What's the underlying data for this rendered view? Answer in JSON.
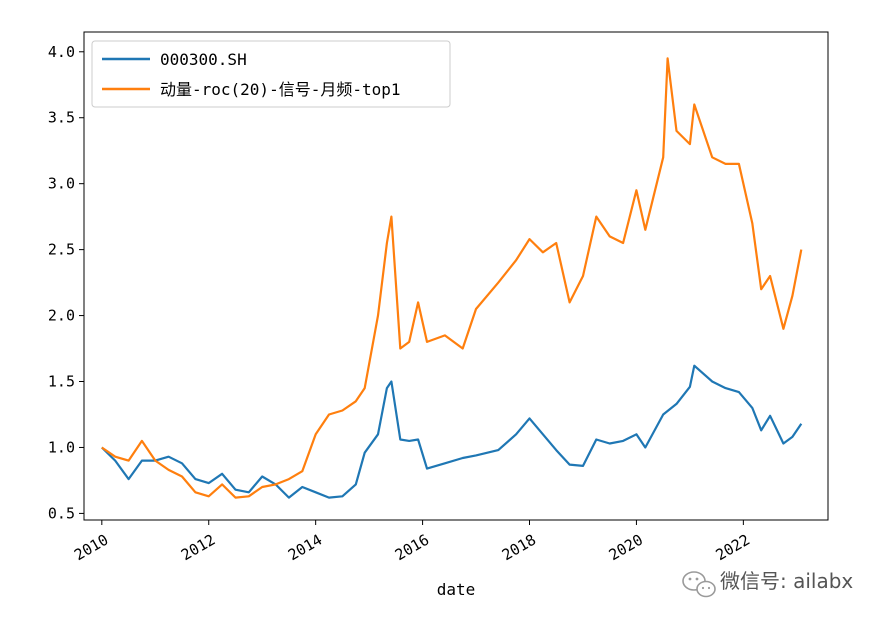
{
  "chart_data": {
    "type": "line",
    "xlabel": "date",
    "ylabel": "",
    "xlim": [
      "2009-09",
      "2023-08"
    ],
    "ylim": [
      0.45,
      4.15
    ],
    "x_ticks": [
      "2010",
      "2012",
      "2014",
      "2016",
      "2018",
      "2020",
      "2022"
    ],
    "y_ticks": [
      "0.5",
      "1.0",
      "1.5",
      "2.0",
      "2.5",
      "3.0",
      "3.5",
      "4.0"
    ],
    "grid": false,
    "legend_position": "top-left",
    "series": [
      {
        "name": "000300.SH",
        "color": "#1f77b4",
        "x": [
          "2010-01",
          "2010-04",
          "2010-07",
          "2010-10",
          "2011-01",
          "2011-04",
          "2011-07",
          "2011-10",
          "2012-01",
          "2012-04",
          "2012-07",
          "2012-10",
          "2013-01",
          "2013-04",
          "2013-07",
          "2013-10",
          "2014-01",
          "2014-04",
          "2014-07",
          "2014-10",
          "2014-12",
          "2015-03",
          "2015-05",
          "2015-06",
          "2015-08",
          "2015-10",
          "2015-12",
          "2016-02",
          "2016-06",
          "2016-10",
          "2017-01",
          "2017-06",
          "2017-10",
          "2018-01",
          "2018-04",
          "2018-07",
          "2018-10",
          "2019-01",
          "2019-04",
          "2019-07",
          "2019-10",
          "2020-01",
          "2020-03",
          "2020-07",
          "2020-10",
          "2021-01",
          "2021-02",
          "2021-06",
          "2021-09",
          "2021-12",
          "2022-03",
          "2022-05",
          "2022-07",
          "2022-10",
          "2022-12",
          "2023-02"
        ],
        "values": [
          1.0,
          0.9,
          0.76,
          0.9,
          0.9,
          0.93,
          0.88,
          0.76,
          0.73,
          0.8,
          0.68,
          0.66,
          0.78,
          0.72,
          0.62,
          0.7,
          0.66,
          0.62,
          0.63,
          0.72,
          0.96,
          1.1,
          1.45,
          1.5,
          1.06,
          1.05,
          1.06,
          0.84,
          0.88,
          0.92,
          0.94,
          0.98,
          1.1,
          1.22,
          1.1,
          0.98,
          0.87,
          0.86,
          1.06,
          1.03,
          1.05,
          1.1,
          1.0,
          1.25,
          1.33,
          1.46,
          1.62,
          1.5,
          1.45,
          1.42,
          1.3,
          1.13,
          1.24,
          1.03,
          1.08,
          1.18
        ]
      },
      {
        "name": "动量-roc(20)-信号-月频-top1",
        "color": "#ff7f0e",
        "x": [
          "2010-01",
          "2010-04",
          "2010-07",
          "2010-10",
          "2011-01",
          "2011-04",
          "2011-07",
          "2011-10",
          "2012-01",
          "2012-04",
          "2012-07",
          "2012-10",
          "2013-01",
          "2013-04",
          "2013-07",
          "2013-10",
          "2014-01",
          "2014-04",
          "2014-07",
          "2014-10",
          "2014-12",
          "2015-03",
          "2015-05",
          "2015-06",
          "2015-08",
          "2015-10",
          "2015-12",
          "2016-02",
          "2016-06",
          "2016-10",
          "2017-01",
          "2017-06",
          "2017-10",
          "2018-01",
          "2018-04",
          "2018-07",
          "2018-10",
          "2019-01",
          "2019-04",
          "2019-07",
          "2019-10",
          "2020-01",
          "2020-03",
          "2020-07",
          "2020-08",
          "2020-10",
          "2021-01",
          "2021-02",
          "2021-06",
          "2021-09",
          "2021-12",
          "2022-03",
          "2022-05",
          "2022-07",
          "2022-10",
          "2022-12",
          "2023-02"
        ],
        "values": [
          1.0,
          0.93,
          0.9,
          1.05,
          0.9,
          0.83,
          0.78,
          0.66,
          0.63,
          0.72,
          0.62,
          0.63,
          0.7,
          0.72,
          0.76,
          0.82,
          1.1,
          1.25,
          1.28,
          1.35,
          1.45,
          2.0,
          2.55,
          2.75,
          1.75,
          1.8,
          2.1,
          1.8,
          1.85,
          1.75,
          2.05,
          2.25,
          2.42,
          2.58,
          2.48,
          2.55,
          2.1,
          2.3,
          2.75,
          2.6,
          2.55,
          2.95,
          2.65,
          3.2,
          3.95,
          3.4,
          3.3,
          3.6,
          3.2,
          3.15,
          3.15,
          2.7,
          2.2,
          2.3,
          1.9,
          2.15,
          2.5
        ]
      }
    ]
  },
  "watermark": {
    "icon": "wechat-icon",
    "text": "微信号: ailabx"
  }
}
